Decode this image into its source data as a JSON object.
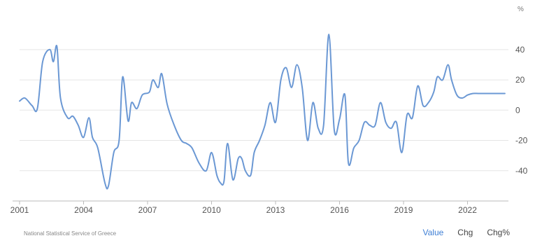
{
  "footer": {
    "source": "National Statistical Service of Greece",
    "tabs": [
      {
        "label": "Value",
        "active": true
      },
      {
        "label": "Chg",
        "active": false
      },
      {
        "label": "Chg%",
        "active": false
      }
    ]
  },
  "colors": {
    "line": "#6b98d4",
    "grid": "#e5e5e5",
    "active_tab": "#3f7fd5"
  },
  "chart_data": {
    "type": "line",
    "unit": "%",
    "xlabel": "",
    "ylabel": "",
    "x_ticks": [
      "2001",
      "2004",
      "2007",
      "2010",
      "2013",
      "2016",
      "2019",
      "2022"
    ],
    "y_ticks": [
      40,
      20,
      0,
      -20,
      -40
    ],
    "xlim": [
      "2001-01",
      "2023-12"
    ],
    "ylim": [
      -60,
      70
    ],
    "grid": true,
    "series": [
      {
        "x": [
          "2001-01",
          "2001-04",
          "2001-08",
          "2001-11",
          "2002-02",
          "2002-06",
          "2002-08",
          "2002-10",
          "2002-12",
          "2003-04",
          "2003-07",
          "2003-10",
          "2004-01",
          "2004-04",
          "2004-06",
          "2004-09",
          "2005-01",
          "2005-03",
          "2005-06",
          "2005-09",
          "2005-11",
          "2006-02",
          "2006-04",
          "2006-07",
          "2006-10",
          "2007-02",
          "2007-04",
          "2007-07",
          "2007-09",
          "2007-12",
          "2008-04",
          "2008-08",
          "2008-11",
          "2009-02",
          "2009-06",
          "2009-10",
          "2010-01",
          "2010-04",
          "2010-06",
          "2010-08",
          "2010-10",
          "2011-01",
          "2011-04",
          "2011-06",
          "2011-08",
          "2011-11",
          "2012-01",
          "2012-04",
          "2012-07",
          "2012-10",
          "2013-01",
          "2013-04",
          "2013-07",
          "2013-10",
          "2014-01",
          "2014-04",
          "2014-07",
          "2014-10",
          "2015-01",
          "2015-04",
          "2015-07",
          "2015-10",
          "2016-01",
          "2016-04",
          "2016-06",
          "2016-09",
          "2016-12",
          "2017-03",
          "2017-06",
          "2017-09",
          "2017-12",
          "2018-03",
          "2018-06",
          "2018-09",
          "2018-12",
          "2019-03",
          "2019-06",
          "2019-09",
          "2019-12",
          "2020-03",
          "2020-06",
          "2020-08",
          "2020-11",
          "2021-02",
          "2021-04",
          "2021-07",
          "2021-10",
          "2022-01",
          "2022-04",
          "2022-07",
          "2022-10",
          "2023-01",
          "2023-04",
          "2023-07",
          "2023-10"
        ],
        "values": [
          6,
          8,
          3,
          1,
          32,
          40,
          32,
          42,
          8,
          -5,
          -4,
          -10,
          -18,
          -5,
          -18,
          -25,
          -48,
          -50,
          -28,
          -20,
          22,
          -7,
          5,
          1,
          10,
          12,
          20,
          15,
          24,
          4,
          -10,
          -20,
          -22,
          -25,
          -35,
          -40,
          -28,
          -43,
          -48,
          -47,
          -22,
          -46,
          -32,
          -32,
          -40,
          -43,
          -28,
          -20,
          -10,
          5,
          -8,
          20,
          28,
          15,
          30,
          15,
          -20,
          5,
          -12,
          -10,
          50,
          -13,
          -6,
          10,
          -35,
          -25,
          -20,
          -8,
          -10,
          -10,
          5,
          -8,
          -12,
          -8,
          -28,
          -3,
          -5,
          16,
          3,
          5,
          12,
          22,
          20,
          30,
          20,
          10,
          8,
          10,
          11,
          11,
          11,
          11,
          11,
          11,
          11
        ],
        "note": ""
      }
    ]
  }
}
